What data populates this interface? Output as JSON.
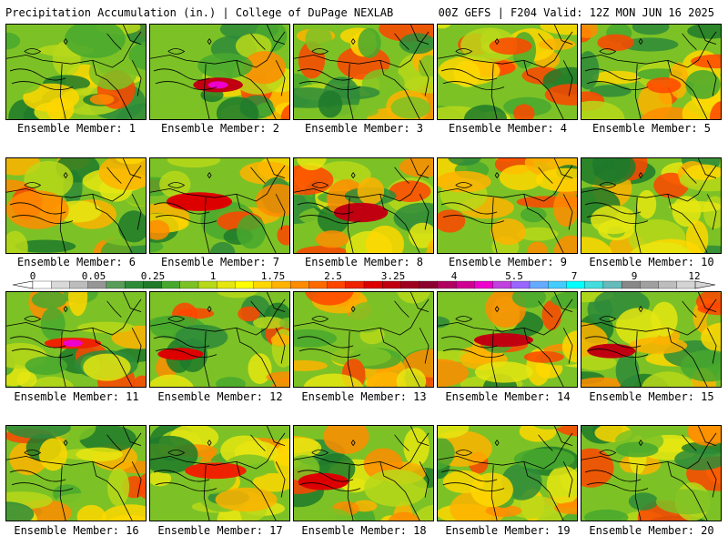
{
  "header": {
    "title_left": "Precipitation Accumulation (in.) | College of DuPage NEXLAB",
    "title_right": "00Z GEFS | F204 Valid: 12Z MON JUN 16 2025"
  },
  "panels": [
    {
      "label": "Ensemble Member: 1"
    },
    {
      "label": "Ensemble Member: 2"
    },
    {
      "label": "Ensemble Member: 3"
    },
    {
      "label": "Ensemble Member: 4"
    },
    {
      "label": "Ensemble Member: 5"
    },
    {
      "label": "Ensemble Member: 6"
    },
    {
      "label": "Ensemble Member: 7"
    },
    {
      "label": "Ensemble Member: 8"
    },
    {
      "label": "Ensemble Member: 9"
    },
    {
      "label": "Ensemble Member: 10"
    },
    {
      "label": "Ensemble Member: 11"
    },
    {
      "label": "Ensemble Member: 12"
    },
    {
      "label": "Ensemble Member: 13"
    },
    {
      "label": "Ensemble Member: 14"
    },
    {
      "label": "Ensemble Member: 15"
    },
    {
      "label": "Ensemble Member: 16"
    },
    {
      "label": "Ensemble Member: 17"
    },
    {
      "label": "Ensemble Member: 18"
    },
    {
      "label": "Ensemble Member: 19"
    },
    {
      "label": "Ensemble Member: 20"
    }
  ],
  "colorbar": {
    "labels": [
      "0",
      "0.05",
      "0.25",
      "1",
      "1.75",
      "2.5",
      "3.25",
      "4",
      "5.5",
      "7",
      "9",
      "12"
    ],
    "colors": [
      "#ffffff",
      "#d9d9d9",
      "#bdbdbd",
      "#969696",
      "#5a9c5a",
      "#2e8b3a",
      "#1f7a2a",
      "#48a82e",
      "#7cc226",
      "#b8d81a",
      "#e6e612",
      "#ffff00",
      "#ffd700",
      "#ffb300",
      "#ff8c00",
      "#ff6a00",
      "#ff4500",
      "#ee2200",
      "#dd0000",
      "#c00010",
      "#a00020",
      "#8b0030",
      "#b00060",
      "#d00090",
      "#ee00cc",
      "#c040e0",
      "#9966ff",
      "#66aaff",
      "#44ccff",
      "#00ffff",
      "#44dddd",
      "#66bbbb",
      "#888888",
      "#a0a0a0",
      "#bdbdbd",
      "#d4d4d4"
    ]
  }
}
